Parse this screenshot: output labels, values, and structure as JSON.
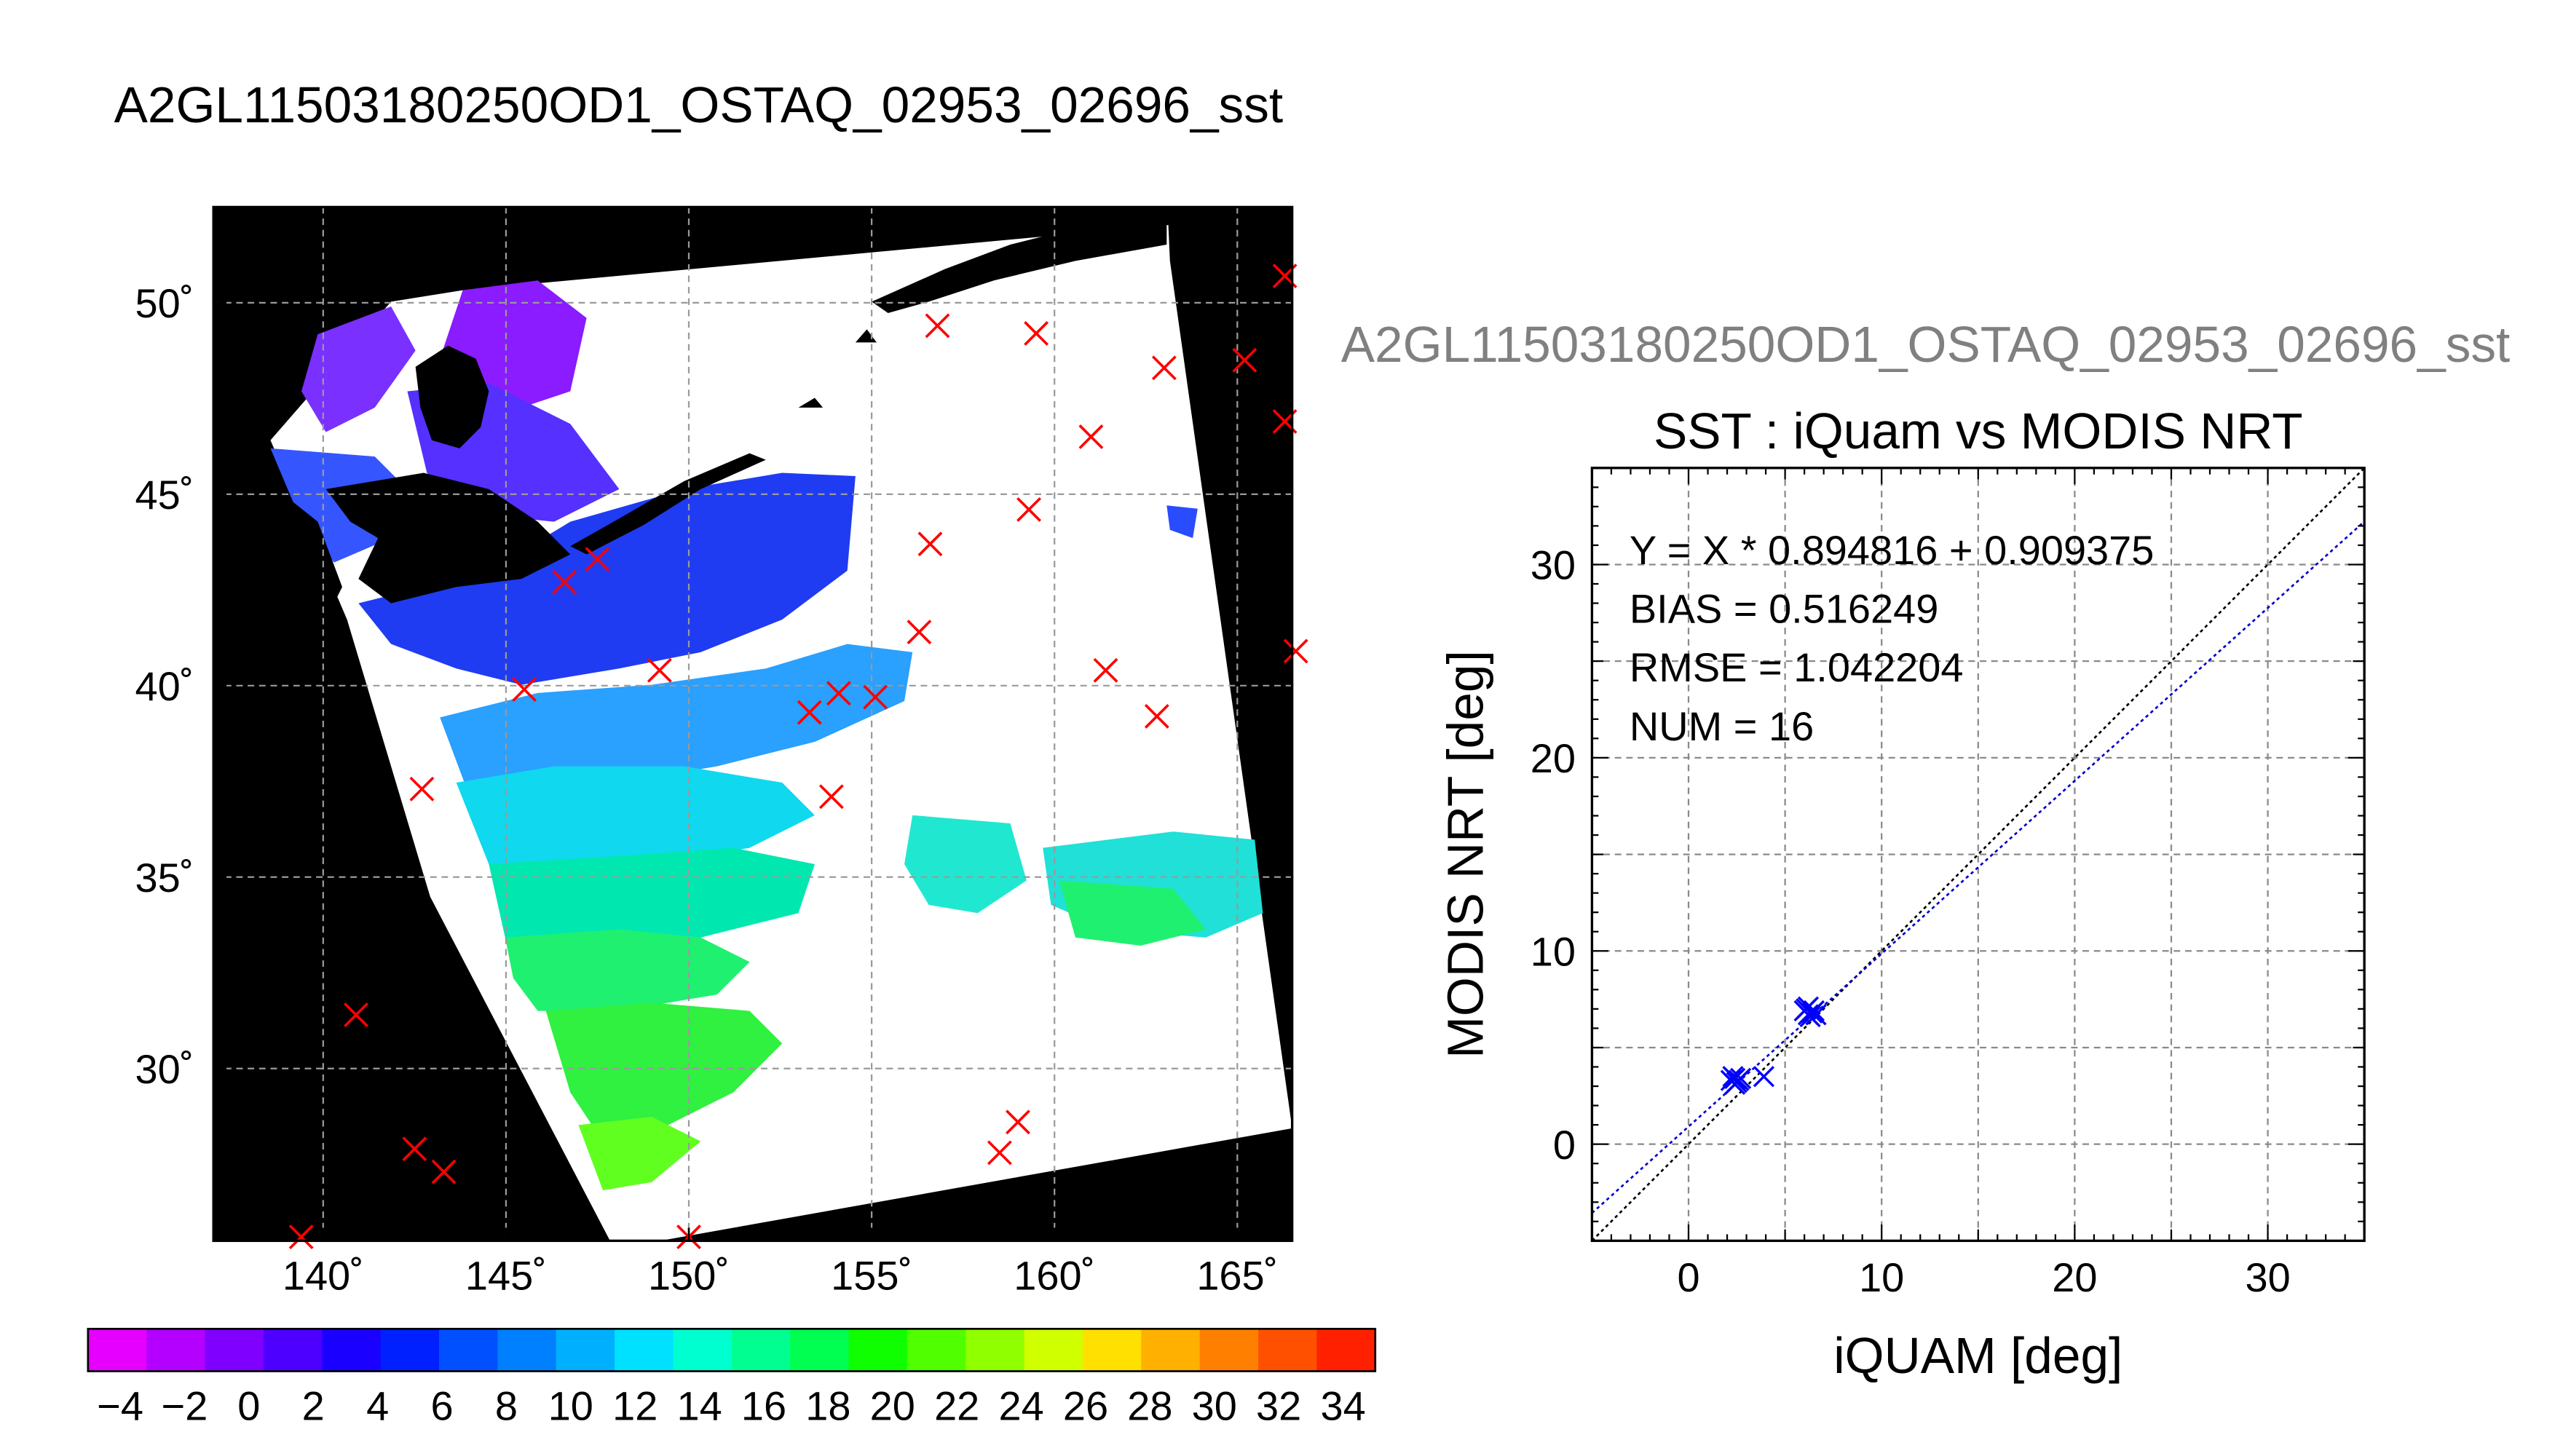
{
  "figure": {
    "main_title": "A2GL11503180250OD1_OSTAQ_02953_02696_sst",
    "sub_title": "A2GL11503180250OD1_OSTAQ_02953_02696_sst"
  },
  "colors": {
    "match_marker": "#ff0000",
    "scatter_marker": "#0000ff",
    "fit_line": "#0000cc",
    "identity_line": "#000000",
    "land": "#000000",
    "cloud": "#ffffff"
  },
  "chart_data": [
    {
      "type": "heatmap",
      "description_kind": "map",
      "title": "",
      "x_ticks": [
        "140˚",
        "145˚",
        "150˚",
        "155˚",
        "160˚",
        "165˚"
      ],
      "y_ticks": [
        "50˚",
        "45˚",
        "40˚",
        "35˚",
        "30˚"
      ],
      "xlim": [
        137,
        166.5
      ],
      "ylim": [
        25.5,
        52.5
      ],
      "grid": true,
      "colorbar": {
        "range": [
          -5,
          35
        ],
        "step": 2,
        "tick_labels": [
          "−4",
          "−2",
          "0",
          "2",
          "4",
          "6",
          "8",
          "10",
          "12",
          "14",
          "16",
          "18",
          "20",
          "22",
          "24",
          "26",
          "28",
          "30",
          "32",
          "34"
        ],
        "colors": [
          "#e600ff",
          "#b300ff",
          "#8000ff",
          "#4d00ff",
          "#1a00ff",
          "#0020ff",
          "#0050ff",
          "#0080ff",
          "#00b0ff",
          "#00e0ff",
          "#00ffd0",
          "#00ff90",
          "#00ff50",
          "#10ff00",
          "#50ff00",
          "#90ff00",
          "#d0ff00",
          "#ffe000",
          "#ffb000",
          "#ff8000",
          "#ff5000",
          "#ff2000"
        ]
      },
      "match_points": [
        {
          "lon": 166.3,
          "lat": 50.7
        },
        {
          "lon": 156.8,
          "lat": 49.4
        },
        {
          "lon": 159.5,
          "lat": 49.2
        },
        {
          "lon": 163.0,
          "lat": 48.3
        },
        {
          "lon": 165.2,
          "lat": 48.5
        },
        {
          "lon": 166.3,
          "lat": 46.9
        },
        {
          "lon": 161.0,
          "lat": 46.5
        },
        {
          "lon": 159.3,
          "lat": 44.6
        },
        {
          "lon": 156.6,
          "lat": 43.7
        },
        {
          "lon": 147.5,
          "lat": 43.3
        },
        {
          "lon": 146.6,
          "lat": 42.7
        },
        {
          "lon": 156.3,
          "lat": 41.4
        },
        {
          "lon": 166.6,
          "lat": 40.9
        },
        {
          "lon": 149.2,
          "lat": 40.4
        },
        {
          "lon": 161.4,
          "lat": 40.4
        },
        {
          "lon": 145.5,
          "lat": 39.9
        },
        {
          "lon": 154.1,
          "lat": 39.8
        },
        {
          "lon": 155.1,
          "lat": 39.7
        },
        {
          "lon": 153.3,
          "lat": 39.3
        },
        {
          "lon": 162.8,
          "lat": 39.2
        },
        {
          "lon": 142.7,
          "lat": 37.3
        },
        {
          "lon": 153.9,
          "lat": 37.1
        },
        {
          "lon": 140.9,
          "lat": 31.4
        },
        {
          "lon": 142.5,
          "lat": 27.9
        },
        {
          "lon": 143.3,
          "lat": 27.3
        },
        {
          "lon": 159.0,
          "lat": 28.6
        },
        {
          "lon": 158.5,
          "lat": 27.8
        },
        {
          "lon": 139.4,
          "lat": 25.6
        },
        {
          "lon": 150.0,
          "lat": 25.6
        }
      ]
    },
    {
      "type": "scatter",
      "title": "SST : iQuam vs MODIS NRT",
      "xlabel": "iQUAM [deg]",
      "ylabel": "MODIS NRT [deg]",
      "xlim": [
        -5,
        35
      ],
      "ylim": [
        -5,
        35
      ],
      "x_ticks": [
        "0",
        "10",
        "20",
        "30"
      ],
      "y_ticks": [
        "0",
        "10",
        "20",
        "30"
      ],
      "grid": true,
      "stats": [
        "Y = X * 0.894816 + 0.909375",
        "BIAS = 0.516249",
        "RMSE = 1.042204",
        "NUM = 16"
      ],
      "fit": {
        "slope": 0.894816,
        "intercept": 0.909375
      },
      "points": [
        {
          "x": 2.2,
          "y": 3.3
        },
        {
          "x": 2.4,
          "y": 3.4
        },
        {
          "x": 2.5,
          "y": 3.2
        },
        {
          "x": 2.3,
          "y": 3.5
        },
        {
          "x": 2.6,
          "y": 3.3
        },
        {
          "x": 2.4,
          "y": 3.1
        },
        {
          "x": 2.7,
          "y": 3.4
        },
        {
          "x": 3.9,
          "y": 3.5
        },
        {
          "x": 6.0,
          "y": 6.9
        },
        {
          "x": 6.2,
          "y": 6.7
        },
        {
          "x": 6.4,
          "y": 6.8
        },
        {
          "x": 6.1,
          "y": 7.0
        },
        {
          "x": 6.3,
          "y": 6.6
        },
        {
          "x": 6.5,
          "y": 6.9
        },
        {
          "x": 6.2,
          "y": 7.1
        },
        {
          "x": 6.6,
          "y": 6.7
        }
      ]
    }
  ]
}
